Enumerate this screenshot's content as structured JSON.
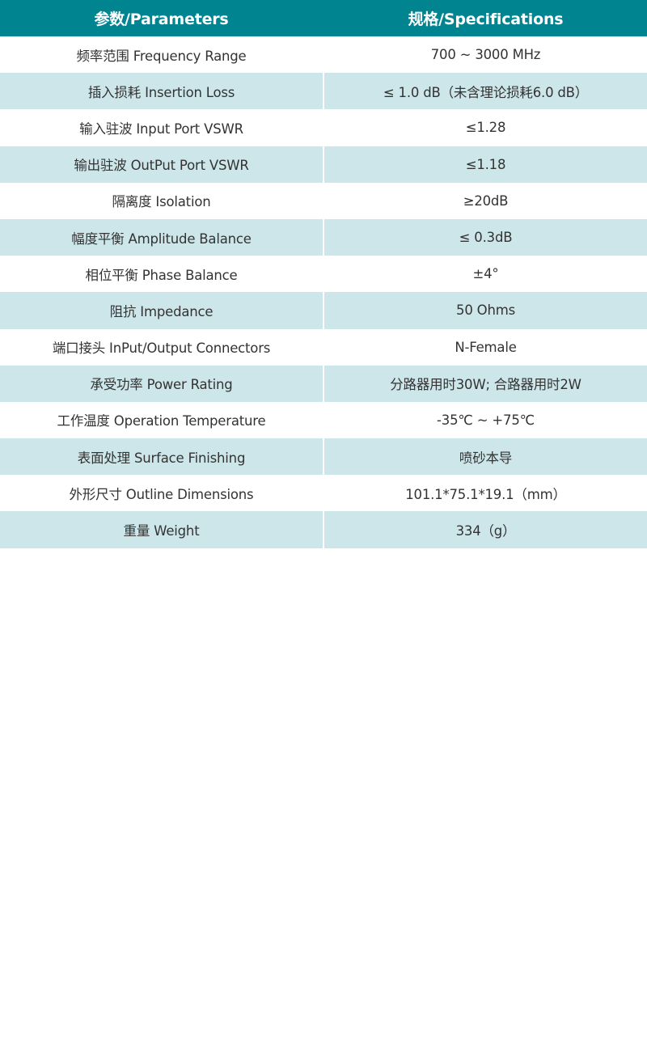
{
  "colors": {
    "header_bg": "#008490",
    "alt_row_bg": "#cde6ea",
    "row_bg": "#ffffff"
  },
  "header": {
    "parameters": "参数/Parameters",
    "specifications": "规格/Specifications"
  },
  "rows": [
    {
      "param": "频率范围 Frequency Range",
      "spec": "700 ~ 3000 MHz"
    },
    {
      "param": "插入损耗 Insertion Loss",
      "spec": "≤ 1.0 dB（未含理论损耗6.0 dB）"
    },
    {
      "param": "输入驻波 Input Port VSWR",
      "spec": "≤1.28"
    },
    {
      "param": "输出驻波 OutPut Port VSWR",
      "spec": "≤1.18"
    },
    {
      "param": "隔离度 Isolation",
      "spec": "≥20dB"
    },
    {
      "param": "幅度平衡 Amplitude Balance",
      "spec": "≤ 0.3dB"
    },
    {
      "param": "相位平衡 Phase Balance",
      "spec": "±4°"
    },
    {
      "param": "阻抗 Impedance",
      "spec": "50 Ohms"
    },
    {
      "param": "端口接头 InPut/Output Connectors",
      "spec": "N-Female"
    },
    {
      "param": "承受功率 Power Rating",
      "spec": "分路器用时30W; 合路器用时2W"
    },
    {
      "param": "工作温度 Operation Temperature",
      "spec": "-35℃ ~ +75℃"
    },
    {
      "param": "表面处理 Surface Finishing",
      "spec": "喷砂本导"
    },
    {
      "param": "外形尺寸 Outline Dimensions",
      "spec": "101.1*75.1*19.1（mm）"
    },
    {
      "param": "重量 Weight",
      "spec": "334（g）"
    }
  ]
}
